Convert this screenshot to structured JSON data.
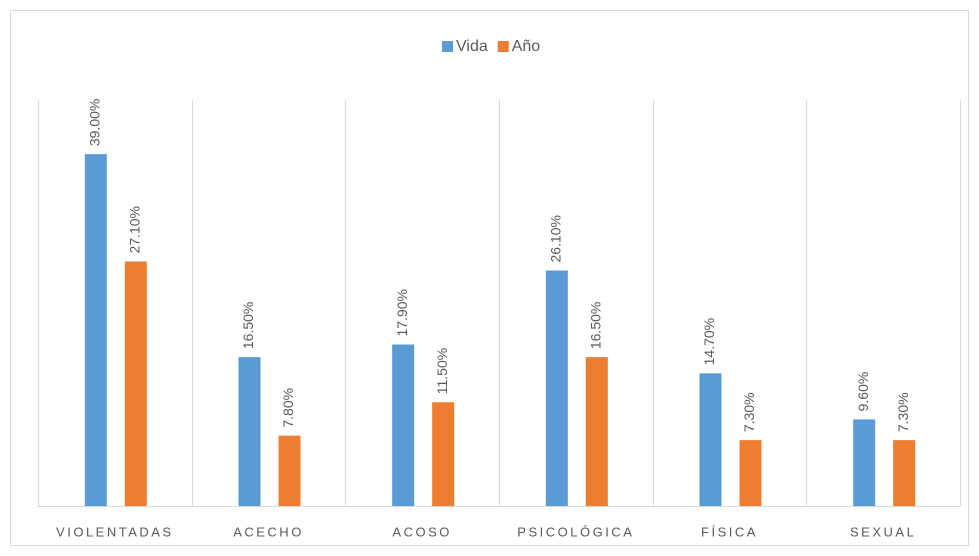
{
  "chart_data": {
    "type": "bar",
    "categories": [
      "VIOLENTADAS",
      "ACECHO",
      "ACOSO",
      "PSICOLÓGICA",
      "FÍSICA",
      "SEXUAL"
    ],
    "series": [
      {
        "name": "Vida",
        "color": "#5b9bd5",
        "values": [
          39.0,
          16.5,
          17.9,
          26.1,
          14.7,
          9.6
        ],
        "value_labels": [
          "39.00%",
          "16.50%",
          "17.90%",
          "26.10%",
          "14.70%",
          "9.60%"
        ]
      },
      {
        "name": "Año",
        "color": "#ed7d31",
        "values": [
          27.1,
          7.8,
          11.5,
          16.5,
          7.3,
          7.3
        ],
        "value_labels": [
          "27.10%",
          "7.80%",
          "11.50%",
          "16.50%",
          "7.30%",
          "7.30%"
        ]
      }
    ],
    "ylim": [
      0,
      45
    ],
    "legend": "top"
  }
}
